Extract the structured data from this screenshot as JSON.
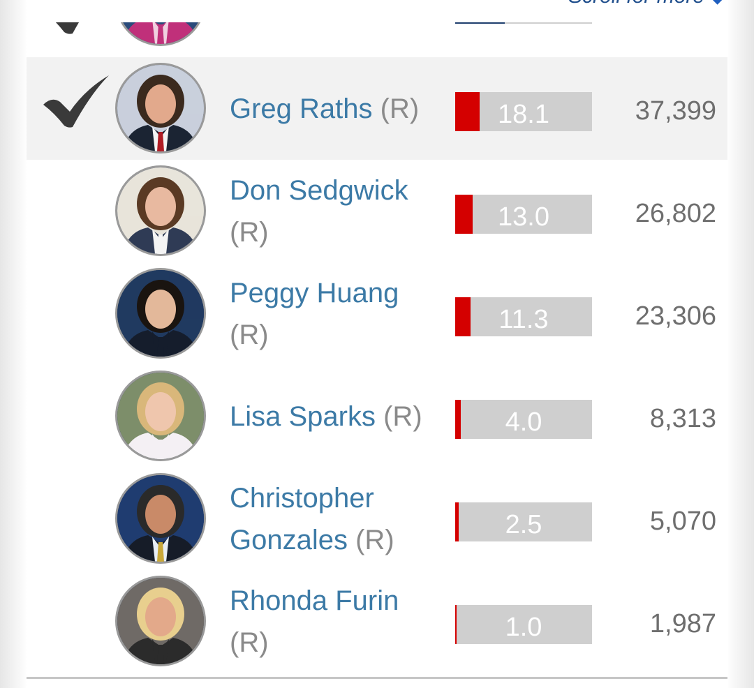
{
  "scroll_hint": {
    "label": "Scroll for more",
    "arrow": "◆"
  },
  "colors": {
    "winner_bg": "#f2f2f2",
    "bar_fill": "#d40000",
    "bar_bg": "#cfcfcf",
    "name": "#3c7aa6",
    "party": "#8a8a8a",
    "votes": "#6e6e6e"
  },
  "icons": {
    "winner": "checkmark-icon"
  },
  "candidates": [
    {
      "name": "",
      "party": "",
      "pct": "",
      "pct_value": 36,
      "votes": "",
      "winner": true,
      "avatar": "portrait-woman-partial",
      "partial": true
    },
    {
      "name": "Greg Raths",
      "party": "(R)",
      "pct": "18.1",
      "pct_value": 18.1,
      "votes": "37,399",
      "winner": true,
      "avatar": "portrait-man-flag"
    },
    {
      "name": "Don Sedgwick",
      "party": "(R)",
      "pct": "13.0",
      "pct_value": 13.0,
      "votes": "26,802",
      "winner": false,
      "avatar": "portrait-man-suit"
    },
    {
      "name": "Peggy Huang",
      "party": "(R)",
      "pct": "11.3",
      "pct_value": 11.3,
      "votes": "23,306",
      "winner": false,
      "avatar": "portrait-woman-dark-hair"
    },
    {
      "name": "Lisa Sparks",
      "party": "(R)",
      "pct": "4.0",
      "pct_value": 4.0,
      "votes": "8,313",
      "winner": false,
      "avatar": "portrait-woman-blonde"
    },
    {
      "name": "Christopher Gonzales",
      "party": "(R)",
      "pct": "2.5",
      "pct_value": 2.5,
      "votes": "5,070",
      "winner": false,
      "avatar": "portrait-man-flag-2"
    },
    {
      "name": "Rhonda Furin",
      "party": "(R)",
      "pct": "1.0",
      "pct_value": 1.0,
      "votes": "1,987",
      "winner": false,
      "avatar": "portrait-woman-blonde-2"
    }
  ]
}
